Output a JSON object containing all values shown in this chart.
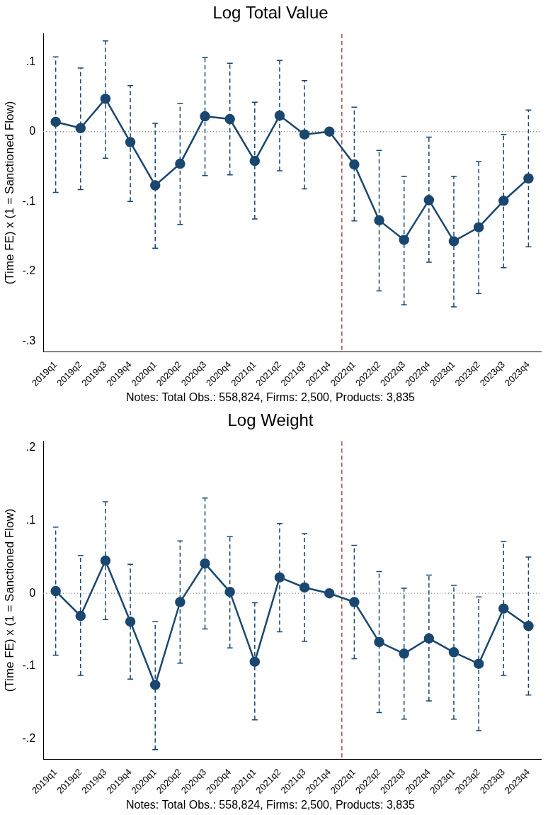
{
  "chart_data": [
    {
      "type": "line",
      "title": "Log Total Value",
      "ylabel": "(Time FE) x (1 = Sanctioned Flow)",
      "annotations": [
        "Notes: Total Obs.: 558,824, Firms: 2,500, Products: 3,835"
      ],
      "categories": [
        "2019q1",
        "2019q2",
        "2019q3",
        "2019q4",
        "2020q1",
        "2020q2",
        "2020q3",
        "2020q4",
        "2021q1",
        "2021q2",
        "2021q3",
        "2021q4",
        "2022q1",
        "2022q2",
        "2022q3",
        "2022q4",
        "2023q1",
        "2023q2",
        "2023q3",
        "2023q4"
      ],
      "series": [
        {
          "color": "#1a476f",
          "values": [
            0.014,
            0.005,
            0.047,
            -0.015,
            -0.077,
            -0.046,
            0.022,
            0.018,
            -0.042,
            0.023,
            -0.004,
            0,
            -0.047,
            -0.127,
            -0.155,
            -0.098,
            -0.157,
            -0.137,
            -0.099,
            -0.067
          ],
          "errors": [
            [
              -0.087,
              0.107
            ],
            [
              -0.083,
              0.091
            ],
            [
              -0.038,
              0.13
            ],
            [
              -0.1,
              0.066
            ],
            [
              -0.167,
              0.012
            ],
            [
              -0.133,
              0.04
            ],
            [
              -0.063,
              0.106
            ],
            [
              -0.062,
              0.098
            ],
            [
              -0.125,
              0.042
            ],
            [
              -0.056,
              0.102
            ],
            [
              -0.082,
              0.073
            ],
            null,
            [
              -0.128,
              0.035
            ],
            [
              -0.228,
              -0.027
            ],
            [
              -0.248,
              -0.064
            ],
            [
              -0.187,
              -0.008
            ],
            [
              -0.251,
              -0.064
            ],
            [
              -0.232,
              -0.043
            ],
            [
              -0.195,
              -0.004
            ],
            [
              -0.165,
              0.031
            ]
          ]
        }
      ],
      "ylim": [
        -0.315,
        0.14
      ],
      "yticks": [
        {
          "value": -0.3,
          "label": "-.3"
        },
        {
          "value": -0.2,
          "label": "-.2"
        },
        {
          "value": -0.1,
          "label": "-.1"
        },
        0,
        {
          "value": 0.1,
          "label": ".1"
        }
      ],
      "ref_lines": [
        {
          "axis": "y",
          "value": 0,
          "color": "#808080",
          "line_style": "dotted"
        },
        {
          "axis": "x",
          "value": "2022q1",
          "color": "#a03030",
          "line_style": "dashed"
        }
      ],
      "grid": false,
      "legend": false,
      "marker": "circle",
      "line_style": "solid"
    },
    {
      "type": "line",
      "title": "Log Weight",
      "ylabel": "(Time FE) x (1 = Sanctioned Flow)",
      "annotations": [
        "Notes: Total Obs.: 558,824, Firms: 2,500, Products: 3,835"
      ],
      "categories": [
        "2019q1",
        "2019q2",
        "2019q3",
        "2019q4",
        "2020q1",
        "2020q2",
        "2020q3",
        "2020q4",
        "2021q1",
        "2021q2",
        "2021q3",
        "2021q4",
        "2022q1",
        "2022q2",
        "2022q3",
        "2022q4",
        "2023q1",
        "2023q2",
        "2023q3",
        "2023q4"
      ],
      "series": [
        {
          "color": "#1a476f",
          "values": [
            0.003,
            -0.031,
            0.045,
            -0.039,
            -0.126,
            -0.012,
            0.041,
            0.002,
            -0.094,
            0.022,
            0.008,
            0,
            -0.012,
            -0.067,
            -0.083,
            -0.062,
            -0.081,
            -0.097,
            -0.021,
            -0.045
          ],
          "errors": [
            [
              -0.085,
              0.091
            ],
            [
              -0.113,
              0.052
            ],
            [
              -0.036,
              0.126
            ],
            [
              -0.118,
              0.04
            ],
            [
              -0.215,
              -0.039
            ],
            [
              -0.096,
              0.072
            ],
            [
              -0.049,
              0.131
            ],
            [
              -0.075,
              0.078
            ],
            [
              -0.174,
              -0.013
            ],
            [
              -0.053,
              0.096
            ],
            [
              -0.066,
              0.082
            ],
            null,
            [
              -0.09,
              0.066
            ],
            [
              -0.164,
              0.03
            ],
            [
              -0.173,
              0.007
            ],
            [
              -0.148,
              0.025
            ],
            [
              -0.173,
              0.011
            ],
            [
              -0.189,
              -0.005
            ],
            [
              -0.113,
              0.071
            ],
            [
              -0.14,
              0.05
            ]
          ]
        }
      ],
      "ylim": [
        -0.228,
        0.209
      ],
      "yticks": [
        {
          "value": -0.2,
          "label": "-.2"
        },
        {
          "value": -0.1,
          "label": "-.1"
        },
        0,
        {
          "value": 0.1,
          "label": ".1"
        },
        {
          "value": 0.2,
          "label": ".2"
        }
      ],
      "ref_lines": [
        {
          "axis": "y",
          "value": 0,
          "color": "#808080",
          "line_style": "dotted"
        },
        {
          "axis": "x",
          "value": "2022q1",
          "color": "#a03030",
          "line_style": "dashed"
        }
      ],
      "grid": false,
      "legend": false,
      "marker": "circle",
      "line_style": "solid"
    }
  ]
}
